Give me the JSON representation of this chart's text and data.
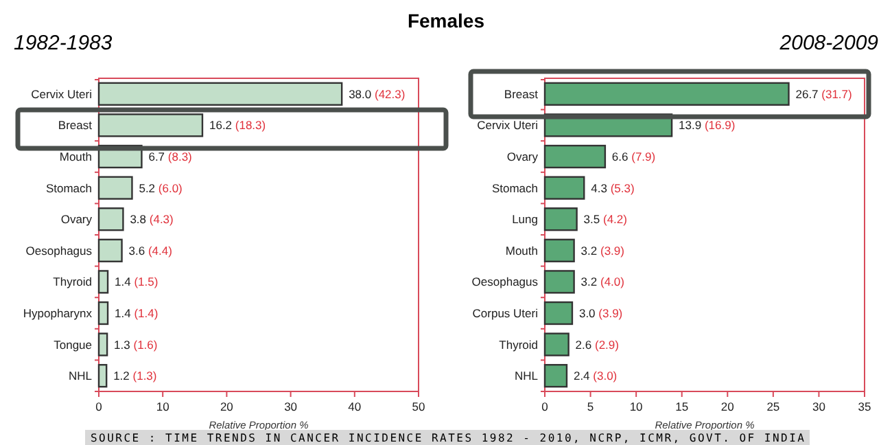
{
  "chart_data": [
    {
      "type": "bar",
      "orientation": "horizontal",
      "title": "Females",
      "subtitle": "1982-1983",
      "xlabel": "Relative Proportion %",
      "categories": [
        "Cervix Uteri",
        "Breast",
        "Mouth",
        "Stomach",
        "Ovary",
        "Oesophagus",
        "Thyroid",
        "Hypopharynx",
        "Tongue",
        "NHL"
      ],
      "values": [
        38.0,
        16.2,
        6.7,
        5.2,
        3.8,
        3.6,
        1.4,
        1.4,
        1.3,
        1.2
      ],
      "value_labels": [
        "38.0 (42.3)",
        "16.2 (18.3)",
        "6.7 (8.3)",
        "5.2 (6.0)",
        "3.8 (4.3)",
        "3.6 (4.4)",
        "1.4 (1.5)",
        "1.4 (1.4)",
        "1.3 (1.6)",
        "1.2 (1.3)"
      ],
      "color": "#c2dfc9",
      "xlim": [
        0,
        50
      ],
      "xticks": [
        0,
        10,
        20,
        30,
        40,
        50
      ],
      "grid": false
    },
    {
      "type": "bar",
      "orientation": "horizontal",
      "subtitle": "2008-2009",
      "xlabel": "Relative Proportion %",
      "categories": [
        "Breast",
        "Cervix Uteri",
        "Ovary",
        "Stomach",
        "Lung",
        "Mouth",
        "Oesophagus",
        "Corpus Uteri",
        "Thyroid",
        "NHL"
      ],
      "values": [
        26.7,
        13.9,
        6.6,
        4.3,
        3.5,
        3.2,
        3.2,
        3.0,
        2.6,
        2.4
      ],
      "value_labels": [
        "26.7 (31.7)",
        "13.9 (16.9)",
        "6.6 (7.9)",
        "4.3 (5.3)",
        "3.5 (4.2)",
        "3.2 (3.9)",
        "3.2 (4.0)",
        "3.0 (3.9)",
        "2.6 (2.9)",
        "2.4 (3.0)"
      ],
      "color": "#5aa876",
      "xlim": [
        0,
        35
      ],
      "xticks": [
        0,
        5,
        10,
        15,
        20,
        25,
        30,
        35
      ],
      "grid": false,
      "annotations": [
        "SOURCE : TIME TRENDS IN CANCER INCIDENCE RATES 1982 - 2010, NCRP, ICMR, GOVT. OF INDIA"
      ]
    }
  ]
}
